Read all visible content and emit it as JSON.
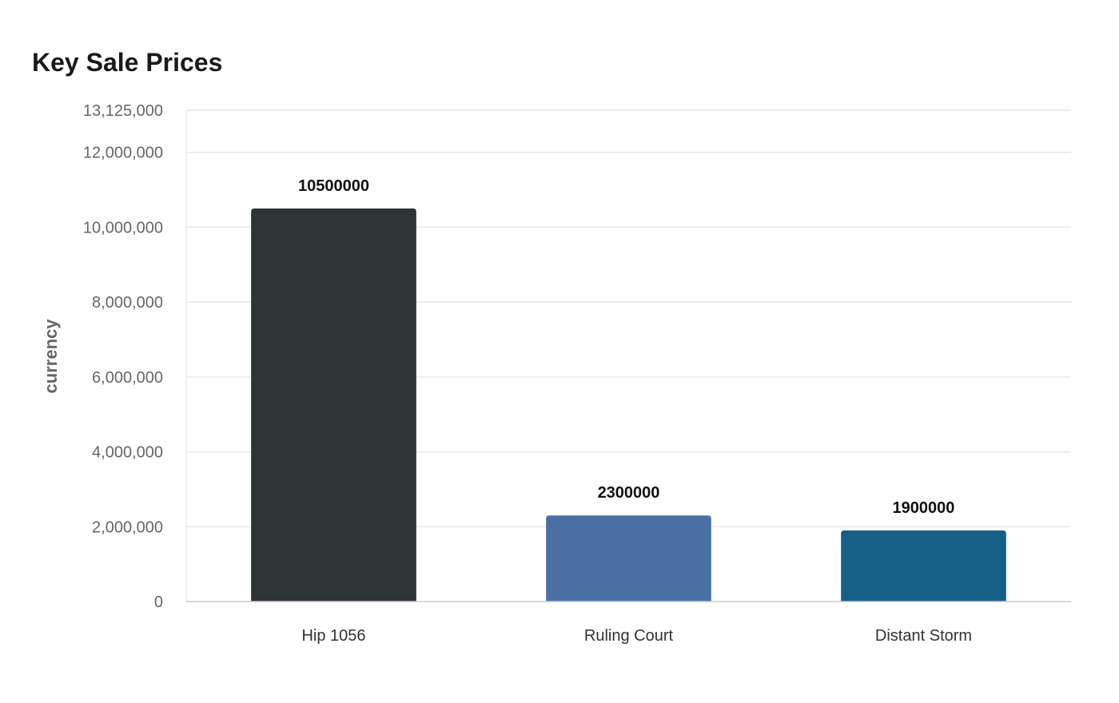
{
  "chart_data": {
    "type": "bar",
    "title": "Key Sale Prices",
    "xlabel": "",
    "ylabel": "currency",
    "categories": [
      "Hip 1056",
      "Ruling Court",
      "Distant Storm"
    ],
    "values": [
      10500000,
      2300000,
      1900000
    ],
    "data_labels": [
      "10500000",
      "2300000",
      "1900000"
    ],
    "colors": [
      "#2d3436",
      "#4a6fa5",
      "#166088"
    ],
    "ylim": [
      0,
      13125000
    ],
    "yticks": [
      0,
      2000000,
      4000000,
      6000000,
      8000000,
      10000000,
      12000000,
      13125000
    ],
    "ytick_labels": [
      "0",
      "2,000,000",
      "4,000,000",
      "6,000,000",
      "8,000,000",
      "10,000,000",
      "12,000,000",
      "13,125,000"
    ],
    "grid": true,
    "legend": "none"
  }
}
